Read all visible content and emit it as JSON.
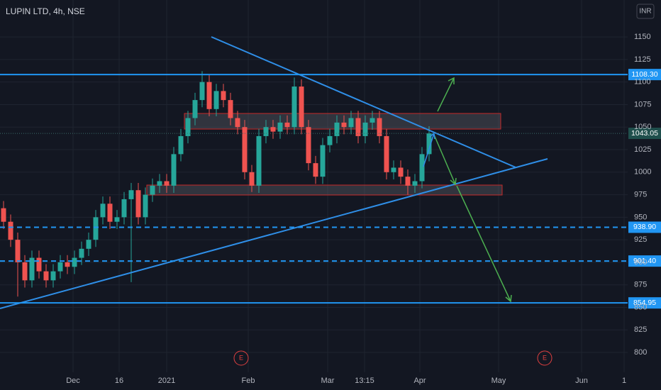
{
  "chart_data": {
    "type": "candlestick",
    "title": "LUPIN LTD, 4h, NSE",
    "currency": "INR",
    "events": [
      "E",
      "E"
    ],
    "up_color": "#26a69a",
    "down_color": "#ef5350",
    "grid": true,
    "xlim": [
      0,
      88.5
    ],
    "ylim": [
      778,
      1191
    ],
    "yticks": [
      800,
      825,
      850,
      875,
      900,
      925,
      950,
      975,
      1000,
      1025,
      1050,
      1075,
      1100,
      1125,
      1150
    ],
    "xticks": [
      {
        "value": 10.3,
        "label": "Dec"
      },
      {
        "value": 16.8,
        "label": "16"
      },
      {
        "value": 23.5,
        "label": "2021"
      },
      {
        "value": 35,
        "label": "Feb"
      },
      {
        "value": 46.2,
        "label": "Mar"
      },
      {
        "value": 51.4,
        "label": "13:15"
      },
      {
        "value": 59.2,
        "label": "Apr"
      },
      {
        "value": 70.3,
        "label": "May"
      },
      {
        "value": 82,
        "label": "Jun"
      },
      {
        "value": 88,
        "label": "1"
      }
    ],
    "open": [
      960,
      945,
      925,
      900,
      880,
      905,
      890,
      880,
      890,
      900,
      895,
      905,
      915,
      925,
      950,
      965,
      945,
      950,
      970,
      980,
      950,
      975,
      985,
      990,
      985,
      1020,
      1040,
      1060,
      1080,
      1100,
      1070,
      1090,
      1080,
      1060,
      1050,
      1000,
      985,
      1040,
      1050,
      1045,
      1055,
      1050,
      1095,
      1050,
      1010,
      995,
      1030,
      1040,
      1055,
      1050,
      1060,
      1040,
      1055,
      1060,
      1040,
      1000,
      1005,
      995,
      985,
      990,
      1020
    ],
    "high": [
      968,
      953,
      933,
      908,
      913,
      913,
      898,
      898,
      908,
      908,
      913,
      923,
      933,
      958,
      973,
      973,
      958,
      978,
      988,
      988,
      983,
      993,
      998,
      998,
      1028,
      1048,
      1068,
      1088,
      1112,
      1108,
      1098,
      1098,
      1088,
      1068,
      1058,
      1008,
      1048,
      1058,
      1058,
      1063,
      1063,
      1105,
      1103,
      1058,
      1018,
      1038,
      1048,
      1063,
      1063,
      1068,
      1068,
      1063,
      1068,
      1068,
      1048,
      1013,
      1013,
      1003,
      998,
      1028,
      1051
    ],
    "low": [
      937,
      917,
      862,
      872,
      872,
      882,
      872,
      872,
      882,
      887,
      887,
      897,
      907,
      917,
      942,
      937,
      937,
      942,
      878,
      942,
      942,
      967,
      977,
      977,
      977,
      1012,
      1032,
      1052,
      1072,
      1062,
      1062,
      1072,
      1052,
      1042,
      992,
      978,
      977,
      1032,
      1037,
      1037,
      1042,
      1042,
      1042,
      1002,
      987,
      987,
      1022,
      1032,
      1042,
      1042,
      1032,
      1032,
      1047,
      1032,
      992,
      992,
      987,
      975,
      977,
      982,
      1012
    ],
    "close": [
      945,
      925,
      900,
      880,
      905,
      890,
      880,
      890,
      900,
      895,
      905,
      915,
      925,
      950,
      965,
      945,
      950,
      970,
      980,
      950,
      975,
      985,
      990,
      985,
      1020,
      1040,
      1060,
      1080,
      1100,
      1070,
      1090,
      1080,
      1060,
      1050,
      1000,
      985,
      1040,
      1050,
      1045,
      1055,
      1050,
      1095,
      1050,
      1010,
      995,
      1030,
      1040,
      1055,
      1050,
      1060,
      1040,
      1055,
      1060,
      1040,
      1000,
      1005,
      995,
      985,
      990,
      1020,
      1043
    ],
    "levels": [
      {
        "value": 1108.3,
        "label": "1108.30",
        "style": "solid",
        "color": "#2196f3"
      },
      {
        "value": 938.9,
        "label": "938.90",
        "style": "dashed",
        "color": "#2196f3"
      },
      {
        "value": 901.4,
        "label": "901.40",
        "style": "dashed",
        "color": "#2196f3"
      },
      {
        "value": 854.95,
        "label": "854.95",
        "style": "solid",
        "color": "#2196f3"
      }
    ],
    "last_price": {
      "value": 1043.05,
      "label": "1043.05",
      "color": "#1f4f4c"
    }
  }
}
